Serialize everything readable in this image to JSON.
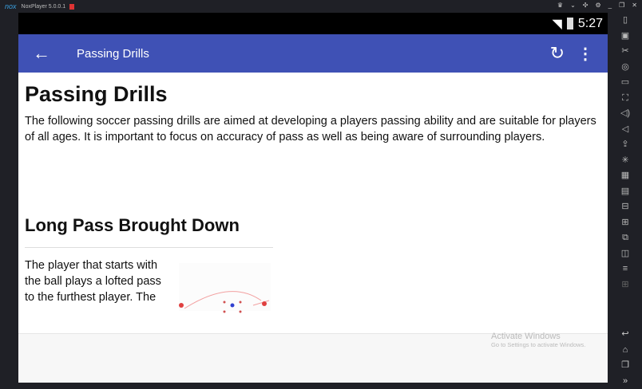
{
  "window": {
    "logo": "nox",
    "title": "NoxPlayer 5.0.0.1"
  },
  "status_bar": {
    "time": "5:27"
  },
  "app_bar": {
    "title": "Passing Drills",
    "back_icon": "arrow-left-icon",
    "refresh_icon": "refresh-icon",
    "more_icon": "more-vert-icon"
  },
  "content": {
    "heading": "Passing Drills",
    "intro": "The following soccer passing drills are aimed at developing a players passing ability and are suitable for players of all ages. It is important to focus on accuracy of pass as well as being aware of surrounding players.",
    "drills": [
      {
        "title": "Long Pass Brought Down",
        "text": "The player that starts with the ball plays a lofted pass to the furthest player. The"
      }
    ]
  },
  "watermark": {
    "title": "Activate Windows",
    "subtitle": "Go to Settings to activate Windows."
  },
  "sidebar_icons": [
    "phone-icon",
    "screenshot-icon",
    "scissors-icon",
    "location-icon",
    "display-icon",
    "fullscreen-icon",
    "volume-up-icon",
    "volume-down-icon",
    "apk-install-icon",
    "loading-icon",
    "shake-icon",
    "recorder-icon",
    "toolbox-icon",
    "multi-instance-icon",
    "sync-icon",
    "resize-icon",
    "menu-icon",
    "add-icon"
  ],
  "sidebar_nav": [
    "back-icon",
    "home-icon",
    "recents-icon",
    "expand-icon"
  ]
}
